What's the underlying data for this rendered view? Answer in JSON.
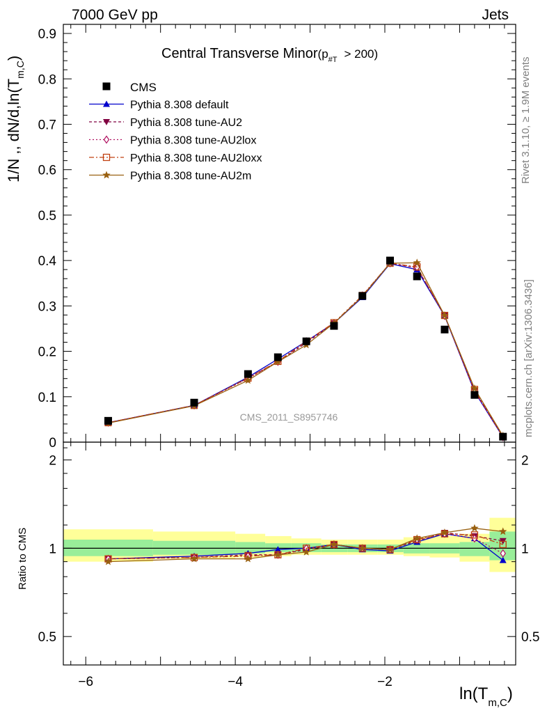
{
  "header": {
    "left": "7000 GeV pp",
    "right": "Jets"
  },
  "side_labels": {
    "rivet": "Rivet 3.1.10, ≥ 1.9M events",
    "mcplots": "mcplots.cern.ch [arXiv:1306.3436]"
  },
  "chart_data": [
    {
      "type": "line",
      "title": "Central Transverse Minor",
      "title_cut_main": "(p",
      "title_cut_sub": "#T",
      "title_cut_tail": "> 200)",
      "ylabel": "1/N ,, dN/d,ln(T",
      "ylabel_sub": "m,C",
      "ylabel_tail": ")",
      "watermark": "CMS_2011_S8957746",
      "xlim": [
        -6.3,
        -0.25
      ],
      "ylim": [
        0,
        0.92
      ],
      "yticks": [
        0,
        0.1,
        0.2,
        0.3,
        0.4,
        0.5,
        0.6,
        0.7,
        0.8,
        0.9
      ],
      "ytick_labels": [
        "0",
        "0.1",
        "0.2",
        "0.3",
        "0.4",
        "0.5",
        "0.6",
        "0.7",
        "0.8",
        "0.9"
      ],
      "x": [
        -5.7,
        -4.55,
        -3.83,
        -3.43,
        -3.05,
        -2.68,
        -2.3,
        -1.93,
        -1.57,
        -1.2,
        -0.8,
        -0.42
      ],
      "legend_placement": "top-left",
      "data_points": {
        "name": "CMS",
        "color": "#000000",
        "y": [
          0.047,
          0.087,
          0.15,
          0.187,
          0.222,
          0.256,
          0.322,
          0.4,
          0.365,
          0.248,
          0.104,
          0.012
        ]
      },
      "series": [
        {
          "name": "Pythia 8.308 default",
          "color": "#0000cc",
          "marker": "triangle-up",
          "dash": "",
          "y": [
            0.043,
            0.081,
            0.143,
            0.183,
            0.222,
            0.262,
            0.319,
            0.393,
            0.38,
            0.278,
            0.111,
            0.011
          ]
        },
        {
          "name": "Pythia 8.308 tune-AU2",
          "color": "#800040",
          "marker": "triangle-down",
          "dash": "4,3",
          "y": [
            0.043,
            0.081,
            0.141,
            0.177,
            0.219,
            0.262,
            0.322,
            0.394,
            0.384,
            0.279,
            0.113,
            0.013
          ]
        },
        {
          "name": "Pythia 8.308 tune-AU2lox",
          "color": "#b01060",
          "marker": "diamond-open",
          "dash": "2,3",
          "y": [
            0.043,
            0.081,
            0.14,
            0.177,
            0.222,
            0.262,
            0.323,
            0.394,
            0.385,
            0.278,
            0.112,
            0.011
          ]
        },
        {
          "name": "Pythia 8.308 tune-AU2loxx",
          "color": "#c04010",
          "marker": "square-open",
          "dash": "7,3,2,3",
          "y": [
            0.043,
            0.081,
            0.141,
            0.178,
            0.222,
            0.263,
            0.323,
            0.394,
            0.386,
            0.279,
            0.116,
            0.012
          ]
        },
        {
          "name": "Pythia 8.308 tune-AU2m",
          "color": "#996010",
          "marker": "star",
          "dash": "",
          "y": [
            0.042,
            0.08,
            0.136,
            0.177,
            0.214,
            0.262,
            0.321,
            0.394,
            0.395,
            0.279,
            0.118,
            0.014
          ]
        }
      ]
    },
    {
      "type": "line",
      "ylabel": "Ratio to CMS",
      "xlabel": "ln(T",
      "xlabel_sub": "m,C",
      "xlabel_tail": ")",
      "xlim": [
        -6.3,
        -0.25
      ],
      "ylim": [
        0.4,
        2.3
      ],
      "log_y": true,
      "yticks": [
        0.5,
        1,
        2
      ],
      "ytick_labels": [
        "0.5",
        "1",
        "2"
      ],
      "xticks": [
        -6,
        -4,
        -2
      ],
      "xtick_labels": [
        "−6",
        "−4",
        "−2"
      ],
      "bins": [
        [
          -6.3,
          -5.1
        ],
        [
          -5.1,
          -4.0
        ],
        [
          -4.0,
          -3.6
        ],
        [
          -3.6,
          -3.25
        ],
        [
          -3.25,
          -2.85
        ],
        [
          -2.85,
          -2.5
        ],
        [
          -2.5,
          -2.1
        ],
        [
          -2.1,
          -1.75
        ],
        [
          -1.75,
          -1.4
        ],
        [
          -1.4,
          -1.0
        ],
        [
          -1.0,
          -0.6
        ],
        [
          -0.6,
          -0.25
        ]
      ],
      "band_inner": [
        [
          0.94,
          1.07
        ],
        [
          0.95,
          1.06
        ],
        [
          0.96,
          1.05
        ],
        [
          0.97,
          1.04
        ],
        [
          0.97,
          1.04
        ],
        [
          0.97,
          1.03
        ],
        [
          0.97,
          1.03
        ],
        [
          0.97,
          1.03
        ],
        [
          0.96,
          1.04
        ],
        [
          0.96,
          1.04
        ],
        [
          0.94,
          1.05
        ],
        [
          0.91,
          1.14
        ]
      ],
      "band_outer": [
        [
          0.9,
          1.16
        ],
        [
          0.92,
          1.14
        ],
        [
          0.93,
          1.12
        ],
        [
          0.94,
          1.1
        ],
        [
          0.95,
          1.08
        ],
        [
          0.95,
          1.07
        ],
        [
          0.95,
          1.07
        ],
        [
          0.95,
          1.07
        ],
        [
          0.94,
          1.09
        ],
        [
          0.93,
          1.1
        ],
        [
          0.9,
          1.12
        ],
        [
          0.83,
          1.27
        ]
      ],
      "series": [
        {
          "name": "Pythia 8.308 default",
          "y": [
            0.92,
            0.94,
            0.96,
            0.99,
            1.0,
            1.03,
            0.99,
            0.98,
            1.05,
            1.12,
            1.08,
            0.91
          ]
        },
        {
          "name": "Pythia 8.308 tune-AU2",
          "y": [
            0.92,
            0.93,
            0.95,
            0.95,
            0.99,
            1.03,
            1.0,
            0.99,
            1.06,
            1.13,
            1.1,
            1.06
          ]
        },
        {
          "name": "Pythia 8.308 tune-AU2lox",
          "y": [
            0.92,
            0.93,
            0.94,
            0.95,
            1.0,
            1.03,
            1.0,
            0.99,
            1.07,
            1.12,
            1.08,
            0.96
          ]
        },
        {
          "name": "Pythia 8.308 tune-AU2loxx",
          "y": [
            0.92,
            0.93,
            0.94,
            0.95,
            1.0,
            1.03,
            1.0,
            0.99,
            1.07,
            1.12,
            1.11,
            1.03
          ]
        },
        {
          "name": "Pythia 8.308 tune-AU2m",
          "y": [
            0.9,
            0.92,
            0.92,
            0.95,
            0.97,
            1.03,
            1.0,
            0.99,
            1.08,
            1.13,
            1.17,
            1.14
          ]
        }
      ]
    }
  ]
}
